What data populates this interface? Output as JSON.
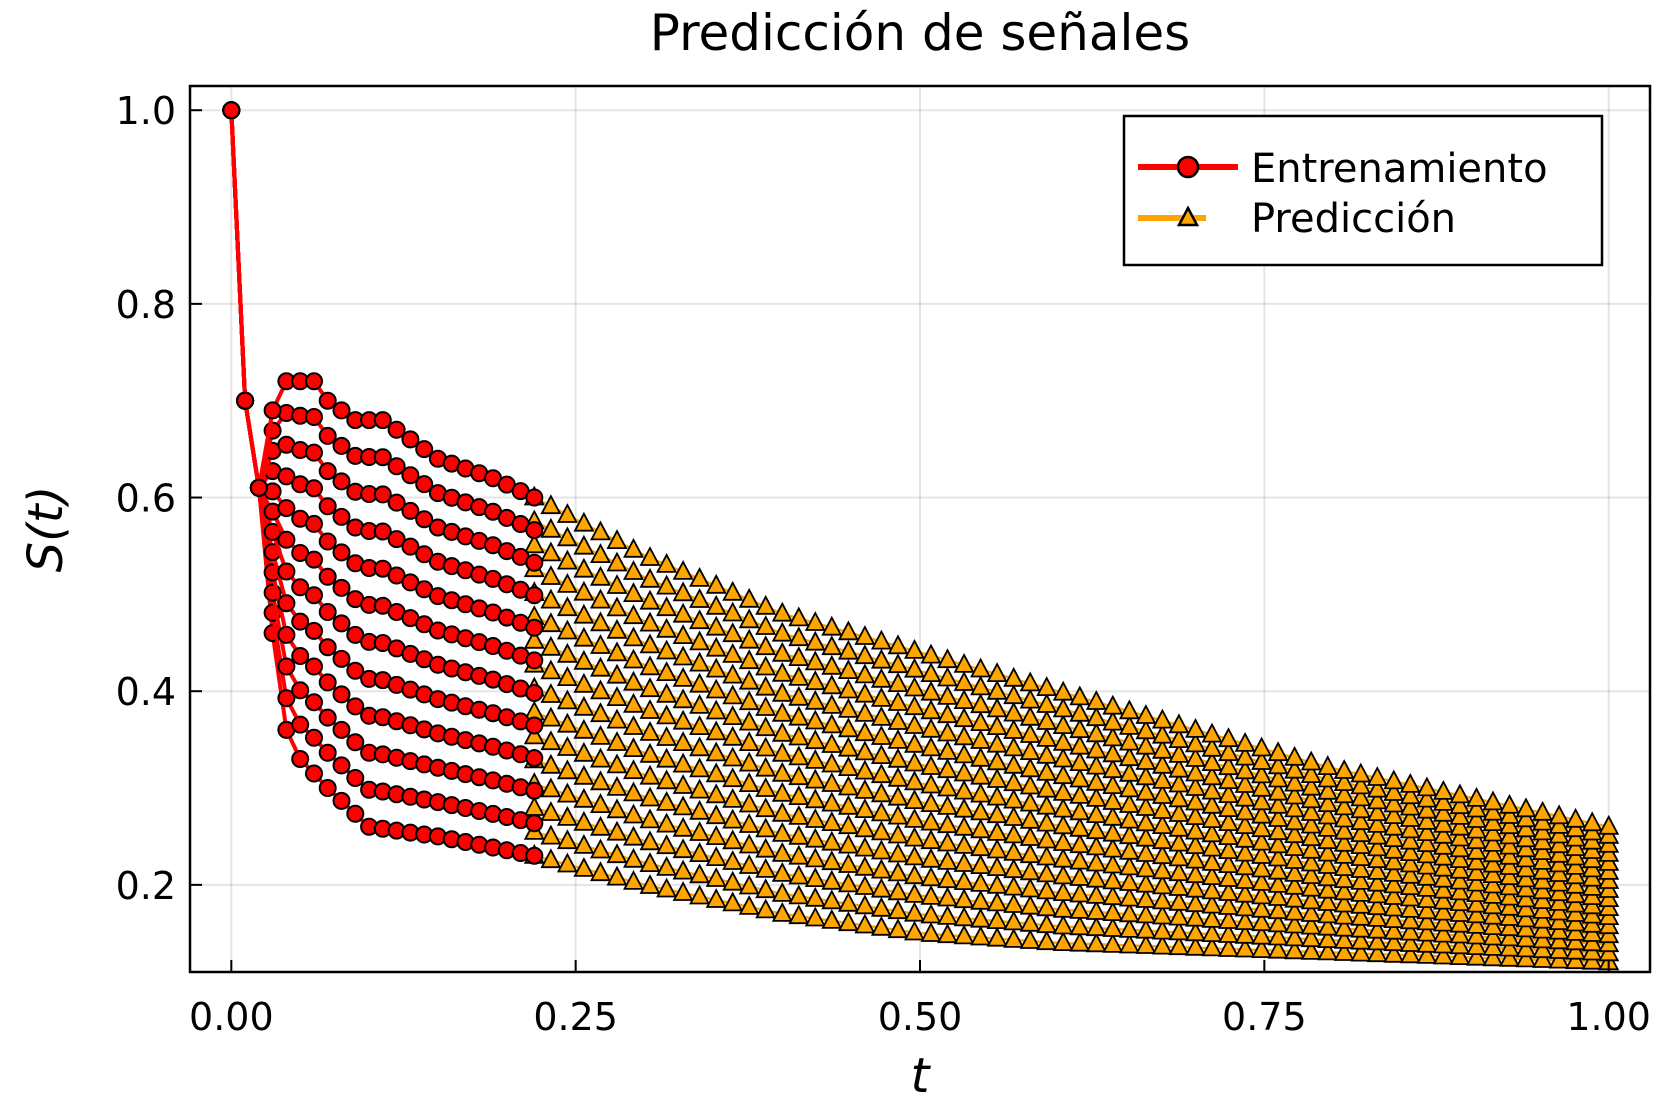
{
  "chart_data": {
    "type": "line",
    "title": "Predicción de señales",
    "xlabel": "t",
    "ylabel": "S(t)",
    "xlim": [
      -0.03,
      1.03
    ],
    "ylim": [
      0.11,
      1.025
    ],
    "xticks": [
      0.0,
      0.25,
      0.5,
      0.75,
      1.0
    ],
    "xtick_labels": [
      "0.00",
      "0.25",
      "0.50",
      "0.75",
      "1.00"
    ],
    "yticks": [
      0.2,
      0.4,
      0.6,
      0.8,
      1.0
    ],
    "ytick_labels": [
      "0.2",
      "0.4",
      "0.6",
      "0.8",
      "1.0"
    ],
    "grid": true,
    "legend_position": "top-right",
    "series": [
      {
        "name": "Entrenamiento",
        "color": "#ff0000",
        "marker": "circle",
        "t_range": [
          0.0,
          0.22
        ],
        "envelope_upper": [
          [
            0.0,
            1.0
          ],
          [
            0.01,
            0.7
          ],
          [
            0.02,
            0.61
          ],
          [
            0.03,
            0.69
          ],
          [
            0.04,
            0.72
          ],
          [
            0.05,
            0.72
          ],
          [
            0.06,
            0.72
          ],
          [
            0.07,
            0.7
          ],
          [
            0.09,
            0.68
          ],
          [
            0.11,
            0.68
          ],
          [
            0.13,
            0.66
          ],
          [
            0.15,
            0.64
          ],
          [
            0.17,
            0.63
          ],
          [
            0.19,
            0.62
          ],
          [
            0.22,
            0.6
          ]
        ],
        "envelope_lower": [
          [
            0.0,
            1.0
          ],
          [
            0.01,
            0.7
          ],
          [
            0.02,
            0.61
          ],
          [
            0.03,
            0.46
          ],
          [
            0.04,
            0.36
          ],
          [
            0.05,
            0.33
          ],
          [
            0.07,
            0.3
          ],
          [
            0.1,
            0.26
          ],
          [
            0.15,
            0.25
          ],
          [
            0.22,
            0.23
          ]
        ]
      },
      {
        "name": "Predicción",
        "color": "#ffa500",
        "marker": "triangle",
        "t_range": [
          0.22,
          1.0
        ],
        "envelope_upper": [
          [
            0.22,
            0.6
          ],
          [
            0.3,
            0.54
          ],
          [
            0.4,
            0.48
          ],
          [
            0.5,
            0.44
          ],
          [
            0.6,
            0.4
          ],
          [
            0.7,
            0.36
          ],
          [
            0.8,
            0.32
          ],
          [
            0.9,
            0.29
          ],
          [
            1.0,
            0.26
          ]
        ],
        "envelope_lower": [
          [
            0.22,
            0.23
          ],
          [
            0.3,
            0.2
          ],
          [
            0.4,
            0.17
          ],
          [
            0.5,
            0.15
          ],
          [
            0.6,
            0.14
          ],
          [
            0.7,
            0.135
          ],
          [
            0.8,
            0.13
          ],
          [
            0.9,
            0.125
          ],
          [
            1.0,
            0.12
          ]
        ]
      }
    ]
  }
}
